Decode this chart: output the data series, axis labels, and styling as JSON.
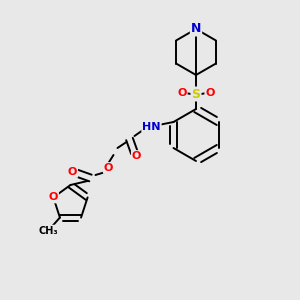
{
  "bg_color": "#e8e8e8",
  "atom_colors": {
    "C": "#000000",
    "N": "#0000cd",
    "O": "#ff0000",
    "S": "#cccc00",
    "H": "#5f9ea0"
  },
  "bond_color": "#000000",
  "line_width": 1.4,
  "scale": 1.0
}
